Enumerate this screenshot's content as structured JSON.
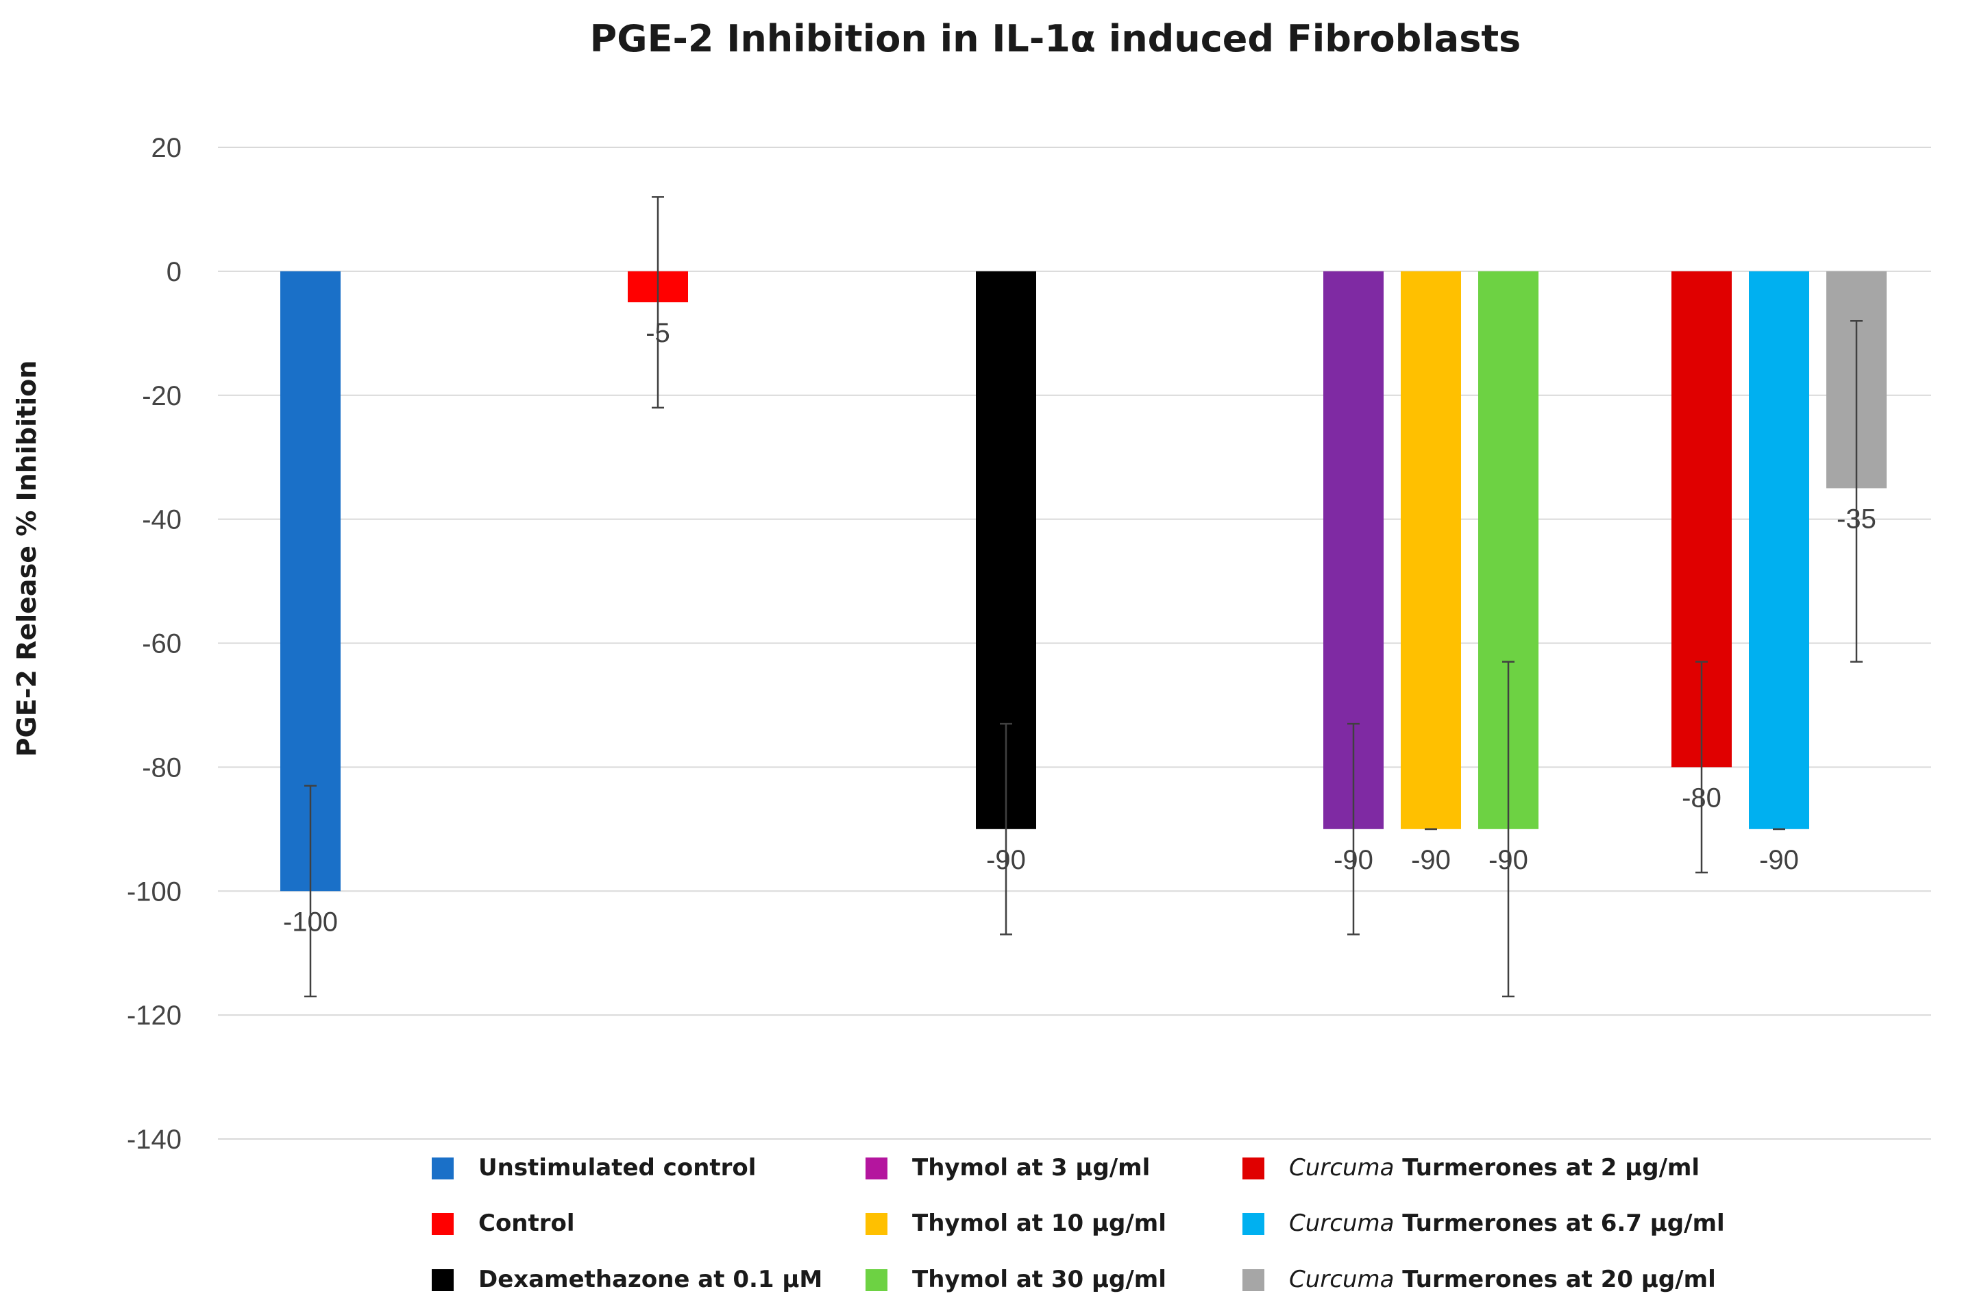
{
  "chart_data": {
    "type": "bar",
    "title": "PGE-2 Inhibition in IL-1α induced Fibroblasts",
    "ylabel": "PGE-2 Release  % Inhibition",
    "xlabel": "",
    "ylim": [
      -140,
      20
    ],
    "yticks": [
      20,
      0,
      -20,
      -40,
      -60,
      -80,
      -100,
      -120,
      -140
    ],
    "grid": true,
    "legend_position": "bottom",
    "series": [
      {
        "name": "Unstimulated control",
        "name_italic": "",
        "color": "#1a70c8",
        "value": -100,
        "label": "-100",
        "error_low": -117,
        "error_high": -83,
        "group": 1
      },
      {
        "name": "Control",
        "name_italic": "",
        "color": "#ff0000",
        "value": -5,
        "label": "-5",
        "error_low": -22,
        "error_high": 12,
        "group": 2
      },
      {
        "name": "Dexamethazone at 0.1  μM",
        "name_italic": "",
        "color": "#000000",
        "value": -90,
        "label": "-90",
        "error_low": -107,
        "error_high": -73,
        "group": 3
      },
      {
        "name": "Thymol at 3 μg/ml",
        "name_italic": "",
        "color": "#7f2aa3",
        "legend_color": "#b4159e",
        "value": -90,
        "label": "-90",
        "error_low": -107,
        "error_high": -73,
        "group": 4
      },
      {
        "name": "Thymol at 10 μg/ml",
        "name_italic": "",
        "color": "#ffc000",
        "value": -90,
        "label": "-90",
        "error_low": -90,
        "error_high": -90,
        "group": 4
      },
      {
        "name": "Thymol at 30 μg/ml",
        "name_italic": "",
        "color": "#6dd243",
        "value": -90,
        "label": "-90",
        "error_low": -117,
        "error_high": -63,
        "group": 4
      },
      {
        "name": " Turmerones at 2 μg/ml",
        "name_italic": "Curcuma",
        "color": "#e00000",
        "value": -80,
        "label": "-80",
        "error_low": -97,
        "error_high": -63,
        "group": 5
      },
      {
        "name": " Turmerones at 6.7 μg/ml",
        "name_italic": "Curcuma",
        "color": "#00b0f0",
        "value": -90,
        "label": "-90",
        "error_low": -90,
        "error_high": -90,
        "group": 5
      },
      {
        "name": " Turmerones at 20 μg/ml",
        "name_italic": "Curcuma",
        "color": "#a6a6a6",
        "value": -35,
        "label": "-35",
        "error_low": -63,
        "error_high": -8,
        "group": 5
      }
    ]
  }
}
